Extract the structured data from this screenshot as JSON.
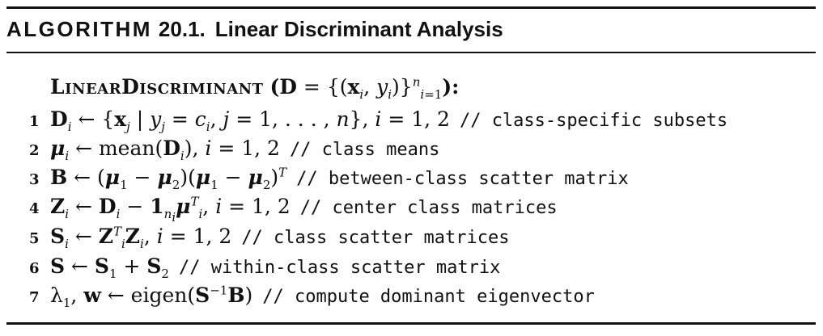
{
  "title": {
    "label": "ALGORITHM",
    "number": "20.1.",
    "name": "Linear Discriminant Analysis"
  },
  "procedure": {
    "name": "LinearDiscriminant",
    "signature": "(D = {(xi, yi)} n i=1):"
  },
  "steps": [
    {
      "num": "1",
      "math": "Di ← {xj | yj = ci, j = 1, ..., n}, i = 1, 2",
      "comment": "// class-specific subsets"
    },
    {
      "num": "2",
      "math": "μi ← mean(Di), i = 1, 2",
      "comment": "// class means"
    },
    {
      "num": "3",
      "math": "B ← (μ1 − μ2)(μ1 − μ2)T",
      "comment": "// between-class scatter matrix"
    },
    {
      "num": "4",
      "math": "Zi ← Di − 1ni μiT, i = 1, 2",
      "comment": "// center class matrices"
    },
    {
      "num": "5",
      "math": "Si ← ZiT Zi, i = 1, 2",
      "comment": "// class scatter matrices"
    },
    {
      "num": "6",
      "math": "S ← S1 + S2",
      "comment": "// within-class scatter matrix"
    },
    {
      "num": "7",
      "math": "λ1, w ← eigen(S−1 B)",
      "comment": "// compute dominant eigenvector"
    }
  ]
}
